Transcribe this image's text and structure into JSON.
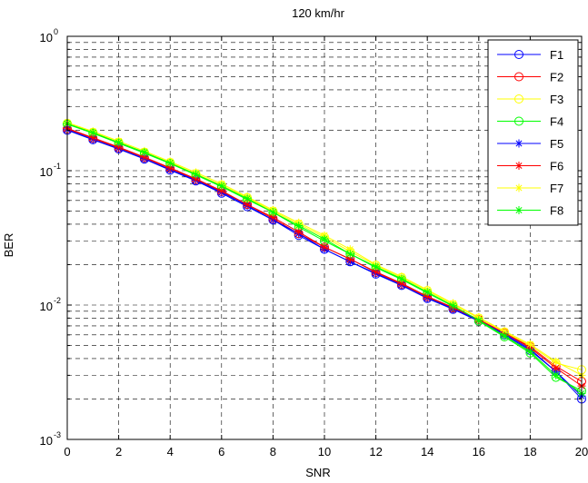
{
  "chart_data": {
    "type": "line",
    "title": "120 km/hr",
    "xlabel": "SNR",
    "ylabel": "BER",
    "xlim": [
      0,
      20
    ],
    "ylim": [
      0.001,
      1
    ],
    "yscale": "log",
    "grid": true,
    "legend_position": "top-right",
    "x_ticks": [
      "0",
      "2",
      "4",
      "6",
      "8",
      "10",
      "12",
      "14",
      "16",
      "18",
      "20"
    ],
    "y_ticks": [
      {
        "base": "10",
        "exp": "-3"
      },
      {
        "base": "10",
        "exp": "-2"
      },
      {
        "base": "10",
        "exp": "-1"
      },
      {
        "base": "10",
        "exp": "0"
      }
    ],
    "x": [
      0,
      1,
      2,
      3,
      4,
      5,
      6,
      7,
      8,
      9,
      10,
      11,
      12,
      13,
      14,
      15,
      16,
      17,
      18,
      19,
      20
    ],
    "series": [
      {
        "name": "F1",
        "color": "#0000ff",
        "marker": "circle",
        "values": [
          0.2,
          0.17,
          0.145,
          0.122,
          0.101,
          0.084,
          0.068,
          0.054,
          0.043,
          0.033,
          0.026,
          0.021,
          0.017,
          0.014,
          0.0112,
          0.0093,
          0.0076,
          0.006,
          0.0046,
          0.0032,
          0.002
        ]
      },
      {
        "name": "F2",
        "color": "#ff0000",
        "marker": "circle",
        "values": [
          0.205,
          0.174,
          0.148,
          0.125,
          0.104,
          0.086,
          0.07,
          0.056,
          0.044,
          0.034,
          0.027,
          0.022,
          0.0175,
          0.0143,
          0.0115,
          0.0095,
          0.0078,
          0.0062,
          0.0049,
          0.0035,
          0.0027
        ]
      },
      {
        "name": "F3",
        "color": "#ffff00",
        "marker": "circle",
        "values": [
          0.225,
          0.193,
          0.163,
          0.137,
          0.115,
          0.095,
          0.078,
          0.063,
          0.05,
          0.04,
          0.032,
          0.025,
          0.0198,
          0.016,
          0.0128,
          0.0101,
          0.008,
          0.0063,
          0.005,
          0.0037,
          0.0033
        ]
      },
      {
        "name": "F4",
        "color": "#00ff00",
        "marker": "circle",
        "values": [
          0.222,
          0.19,
          0.16,
          0.135,
          0.113,
          0.093,
          0.076,
          0.061,
          0.049,
          0.038,
          0.03,
          0.024,
          0.019,
          0.0155,
          0.0123,
          0.0098,
          0.0076,
          0.0058,
          0.0044,
          0.0029,
          0.0023
        ]
      },
      {
        "name": "F5",
        "color": "#0000ff",
        "marker": "star",
        "values": [
          0.202,
          0.171,
          0.146,
          0.123,
          0.102,
          0.085,
          0.069,
          0.055,
          0.043,
          0.034,
          0.026,
          0.021,
          0.0172,
          0.0141,
          0.0113,
          0.0094,
          0.0077,
          0.0061,
          0.0047,
          0.0032,
          0.0021
        ]
      },
      {
        "name": "F6",
        "color": "#ff0000",
        "marker": "star",
        "values": [
          0.207,
          0.176,
          0.15,
          0.126,
          0.105,
          0.087,
          0.071,
          0.056,
          0.045,
          0.035,
          0.027,
          0.022,
          0.0177,
          0.0145,
          0.0116,
          0.0096,
          0.0078,
          0.0062,
          0.0048,
          0.0034,
          0.0025
        ]
      },
      {
        "name": "F7",
        "color": "#ffff00",
        "marker": "star",
        "values": [
          0.228,
          0.196,
          0.166,
          0.14,
          0.117,
          0.097,
          0.08,
          0.064,
          0.051,
          0.041,
          0.033,
          0.026,
          0.02,
          0.0163,
          0.013,
          0.0103,
          0.0081,
          0.0064,
          0.0051,
          0.0038,
          0.003
        ]
      },
      {
        "name": "F8",
        "color": "#00ff00",
        "marker": "star",
        "values": [
          0.224,
          0.192,
          0.162,
          0.137,
          0.114,
          0.094,
          0.077,
          0.062,
          0.049,
          0.039,
          0.031,
          0.024,
          0.0193,
          0.0157,
          0.0125,
          0.0099,
          0.0077,
          0.0059,
          0.0045,
          0.003,
          0.0022
        ]
      }
    ]
  }
}
